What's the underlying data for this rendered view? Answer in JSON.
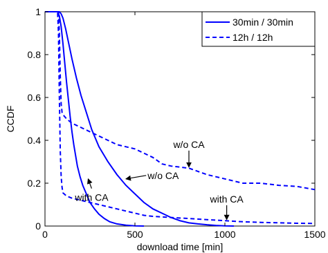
{
  "chart_data": {
    "type": "line",
    "title": "",
    "xlabel": "download time [min]",
    "ylabel": "CCDF",
    "xlim": [
      0,
      1500
    ],
    "ylim": [
      0,
      1
    ],
    "x_ticks": [
      0,
      500,
      1000,
      1500
    ],
    "y_ticks": [
      0,
      0.2,
      0.4,
      0.6,
      0.8,
      1
    ],
    "x_tick_labels": [
      "0",
      "500",
      "1000",
      "1500"
    ],
    "y_tick_labels": [
      "0",
      "0.2",
      "0.4",
      "0.6",
      "0.8",
      "1"
    ],
    "grid": false,
    "legend_position": "top-right",
    "line_color": "#0000ff",
    "legend": [
      {
        "label": "30min / 30min",
        "style": "solid"
      },
      {
        "label": "12h / 12h",
        "style": "dashed"
      }
    ],
    "series": [
      {
        "name": "30min / 30min",
        "variant": "w/o CA",
        "style": "solid",
        "points": [
          [
            0,
            1
          ],
          [
            60,
            1
          ],
          [
            80,
            1
          ],
          [
            90,
            0.99
          ],
          [
            100,
            0.97
          ],
          [
            115,
            0.92
          ],
          [
            130,
            0.86
          ],
          [
            150,
            0.78
          ],
          [
            175,
            0.69
          ],
          [
            200,
            0.61
          ],
          [
            230,
            0.53
          ],
          [
            260,
            0.45
          ],
          [
            300,
            0.37
          ],
          [
            350,
            0.3
          ],
          [
            400,
            0.24
          ],
          [
            450,
            0.19
          ],
          [
            500,
            0.15
          ],
          [
            550,
            0.11
          ],
          [
            600,
            0.08
          ],
          [
            650,
            0.06
          ],
          [
            700,
            0.04
          ],
          [
            750,
            0.025
          ],
          [
            800,
            0.015
          ],
          [
            850,
            0.01
          ],
          [
            900,
            0.006
          ],
          [
            950,
            0.003
          ],
          [
            1000,
            0.001
          ],
          [
            1050,
            0
          ]
        ]
      },
      {
        "name": "30min / 30min",
        "variant": "with CA",
        "style": "solid",
        "points": [
          [
            0,
            1
          ],
          [
            70,
            1
          ],
          [
            80,
            0.98
          ],
          [
            90,
            0.93
          ],
          [
            100,
            0.85
          ],
          [
            110,
            0.76
          ],
          [
            120,
            0.67
          ],
          [
            130,
            0.59
          ],
          [
            140,
            0.51
          ],
          [
            150,
            0.44
          ],
          [
            160,
            0.38
          ],
          [
            170,
            0.33
          ],
          [
            180,
            0.28
          ],
          [
            195,
            0.23
          ],
          [
            210,
            0.19
          ],
          [
            230,
            0.15
          ],
          [
            250,
            0.11
          ],
          [
            275,
            0.08
          ],
          [
            300,
            0.055
          ],
          [
            330,
            0.035
          ],
          [
            360,
            0.02
          ],
          [
            400,
            0.01
          ],
          [
            450,
            0.004
          ],
          [
            500,
            0.001
          ],
          [
            550,
            0
          ]
        ]
      },
      {
        "name": "12h / 12h",
        "variant": "w/o CA",
        "style": "dashed",
        "points": [
          [
            0,
            1
          ],
          [
            75,
            1
          ],
          [
            80,
            0.9
          ],
          [
            85,
            0.7
          ],
          [
            90,
            0.57
          ],
          [
            95,
            0.53
          ],
          [
            100,
            0.52
          ],
          [
            120,
            0.5
          ],
          [
            150,
            0.48
          ],
          [
            200,
            0.46
          ],
          [
            250,
            0.44
          ],
          [
            300,
            0.42
          ],
          [
            350,
            0.4
          ],
          [
            400,
            0.38
          ],
          [
            450,
            0.37
          ],
          [
            500,
            0.36
          ],
          [
            550,
            0.34
          ],
          [
            600,
            0.32
          ],
          [
            650,
            0.29
          ],
          [
            700,
            0.28
          ],
          [
            750,
            0.275
          ],
          [
            800,
            0.27
          ],
          [
            850,
            0.255
          ],
          [
            900,
            0.24
          ],
          [
            950,
            0.23
          ],
          [
            1000,
            0.22
          ],
          [
            1050,
            0.21
          ],
          [
            1100,
            0.2
          ],
          [
            1200,
            0.2
          ],
          [
            1300,
            0.19
          ],
          [
            1400,
            0.185
          ],
          [
            1500,
            0.17
          ]
        ]
      },
      {
        "name": "12h / 12h",
        "variant": "with CA",
        "style": "dashed",
        "points": [
          [
            0,
            1
          ],
          [
            70,
            1
          ],
          [
            75,
            0.9
          ],
          [
            80,
            0.6
          ],
          [
            85,
            0.35
          ],
          [
            90,
            0.23
          ],
          [
            95,
            0.18
          ],
          [
            100,
            0.155
          ],
          [
            120,
            0.14
          ],
          [
            150,
            0.13
          ],
          [
            200,
            0.12
          ],
          [
            250,
            0.11
          ],
          [
            300,
            0.1
          ],
          [
            350,
            0.09
          ],
          [
            400,
            0.08
          ],
          [
            450,
            0.07
          ],
          [
            500,
            0.06
          ],
          [
            550,
            0.05
          ],
          [
            600,
            0.045
          ],
          [
            700,
            0.04
          ],
          [
            800,
            0.035
          ],
          [
            900,
            0.03
          ],
          [
            1000,
            0.025
          ],
          [
            1100,
            0.02
          ],
          [
            1200,
            0.017
          ],
          [
            1300,
            0.015
          ],
          [
            1400,
            0.013
          ],
          [
            1500,
            0.012
          ]
        ]
      }
    ],
    "annotations": [
      {
        "text": "w/o CA",
        "text_x": 700,
        "text_y": 0.365,
        "arrow_to": [
          800,
          0.275
        ]
      },
      {
        "text": "w/o CA",
        "text_x": 570,
        "text_y": 0.22,
        "arrow_to": [
          450,
          0.22
        ]
      },
      {
        "text": "with CA",
        "text_x": 290,
        "text_y": 0.13,
        "arrow_to": [
          240,
          0.22
        ]
      },
      {
        "text": "with CA",
        "text_x": 1010,
        "text_y": 0.11,
        "arrow_to": [
          1010,
          0.03
        ]
      }
    ]
  }
}
